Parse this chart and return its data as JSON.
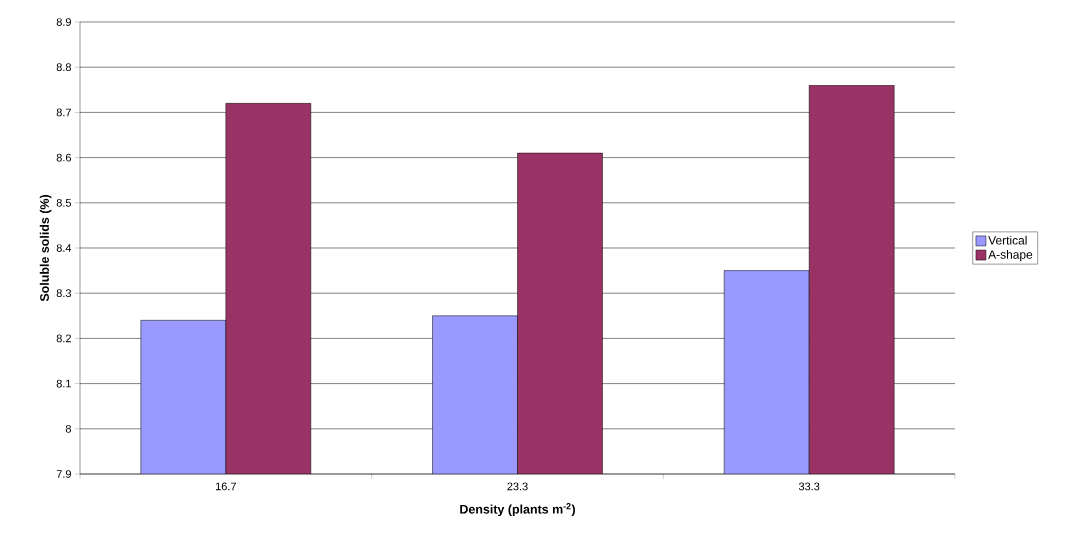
{
  "chart_data": {
    "type": "bar",
    "xlabel": "Density (plants m$^{-2}$)",
    "ylabel": "Soluble solids (%)",
    "categories": [
      "16.7",
      "23.3",
      "33.3"
    ],
    "series": [
      {
        "name": "Vertical",
        "color": "#9999ff",
        "values": [
          8.24,
          8.25,
          8.35
        ]
      },
      {
        "name": "A-shape",
        "color": "#993366",
        "values": [
          8.72,
          8.61,
          8.76
        ]
      }
    ],
    "ylim": [
      7.9,
      8.9
    ],
    "yticks": [
      7.9,
      8,
      8.1,
      8.2,
      8.3,
      8.4,
      8.5,
      8.6,
      8.7,
      8.8,
      8.9
    ],
    "grid": "y",
    "legend": "right"
  }
}
